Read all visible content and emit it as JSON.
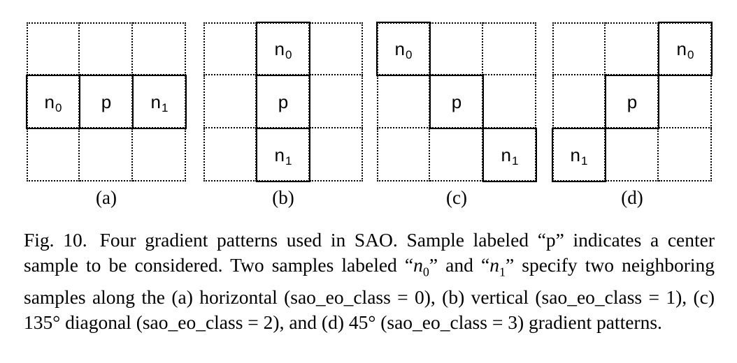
{
  "panels": [
    {
      "id": "a",
      "label": "(a)",
      "cells": [
        {
          "row": 1,
          "col": 0,
          "text": "n",
          "sub": "0"
        },
        {
          "row": 1,
          "col": 1,
          "text": "p",
          "sub": ""
        },
        {
          "row": 1,
          "col": 2,
          "text": "n",
          "sub": "1"
        }
      ]
    },
    {
      "id": "b",
      "label": "(b)",
      "cells": [
        {
          "row": 0,
          "col": 1,
          "text": "n",
          "sub": "0"
        },
        {
          "row": 1,
          "col": 1,
          "text": "p",
          "sub": ""
        },
        {
          "row": 2,
          "col": 1,
          "text": "n",
          "sub": "1"
        }
      ]
    },
    {
      "id": "c",
      "label": "(c)",
      "cells": [
        {
          "row": 0,
          "col": 0,
          "text": "n",
          "sub": "0"
        },
        {
          "row": 1,
          "col": 1,
          "text": "p",
          "sub": ""
        },
        {
          "row": 2,
          "col": 2,
          "text": "n",
          "sub": "1"
        }
      ]
    },
    {
      "id": "d",
      "label": "(d)",
      "cells": [
        {
          "row": 0,
          "col": 2,
          "text": "n",
          "sub": "0"
        },
        {
          "row": 1,
          "col": 1,
          "text": "p",
          "sub": ""
        },
        {
          "row": 2,
          "col": 0,
          "text": "n",
          "sub": "1"
        }
      ]
    }
  ],
  "caption": {
    "fig_label": "Fig. 10.",
    "part1": "Four gradient patterns used in SAO. Sample labeled “p” indicates a center sample to be considered. Two samples labeled “",
    "var0": "n",
    "var0_sub": "0",
    "part2": "” and “",
    "var1": "n",
    "var1_sub": "1",
    "part3": "” specify two neighboring samples along the (a) horizontal (sao_eo_class = 0), (b) vertical (sao_eo_class = 1), (c) 135° diagonal (sao_eo_class = 2), and (d) 45° (sao_eo_class = 3) gradient patterns."
  }
}
